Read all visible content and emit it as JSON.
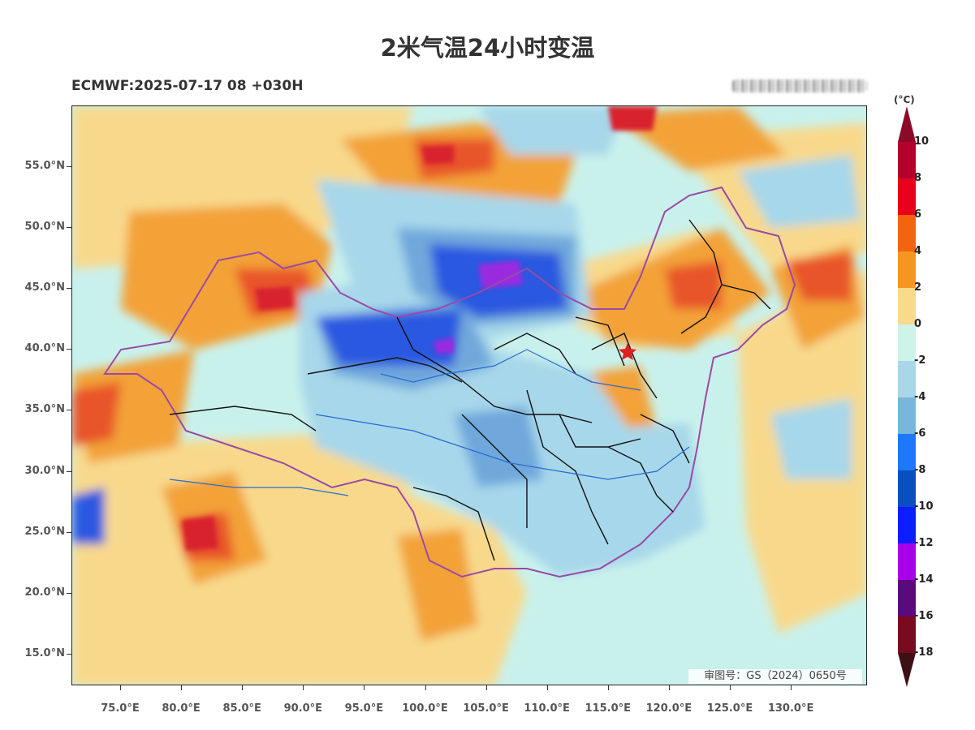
{
  "title": "2米气温24小时变温",
  "subtitle": "ECMWF:2025-07-17 08 +030H",
  "approval_no": "审图号：GS（2024）0650号",
  "colorbar": {
    "unit": "(°C)",
    "labels": [
      "10",
      "8",
      "6",
      "4",
      "2",
      "0",
      "-2",
      "-4",
      "-6",
      "-8",
      "-10",
      "-12",
      "-14",
      "-16",
      "-18"
    ],
    "colors": {
      "over": "#8b0a2a",
      "c10_8": "#b5002c",
      "c8_6": "#e8001c",
      "c6_4": "#f26410",
      "c4_2": "#f5961e",
      "c2_0": "#f9d98a",
      "c0_m2": "#cdf3ea",
      "cm2_m4": "#a8d8e8",
      "cm4_m6": "#7ab5db",
      "cm6_m8": "#1e78ff",
      "cm8_m10": "#0a4fbf",
      "cm10_m12": "#0a1eff",
      "cm12_m14": "#a800e8",
      "cm14_m16": "#5a0a7a",
      "cm16_m18": "#7a0a1e",
      "under": "#3c1014"
    }
  },
  "map": {
    "lat_ticks": [
      "55.0°N",
      "50.0°N",
      "45.0°N",
      "40.0°N",
      "35.0°N",
      "30.0°N",
      "25.0°N",
      "20.0°N",
      "15.0°N"
    ],
    "lon_ticks": [
      "75.0°E",
      "80.0°E",
      "85.0°E",
      "90.0°E",
      "95.0°E",
      "100.0°E",
      "105.0°E",
      "110.0°E",
      "115.0°E",
      "120.0°E",
      "125.0°E",
      "130.0°E"
    ],
    "colors": {
      "ocean": "#c9f1ec",
      "warm_light": "#f8d98c",
      "warm_mid": "#f3a238",
      "warm_strong": "#e8542a",
      "hot": "#d8202e",
      "cool_light": "#a7d7ea",
      "cool_mid": "#6fa8dc",
      "cold": "#2a58e0",
      "very_cold": "#9a2ae0",
      "border": "#9a4aa6",
      "province": "#111111",
      "river": "#2a6ad0",
      "marker": "#e02020"
    }
  }
}
